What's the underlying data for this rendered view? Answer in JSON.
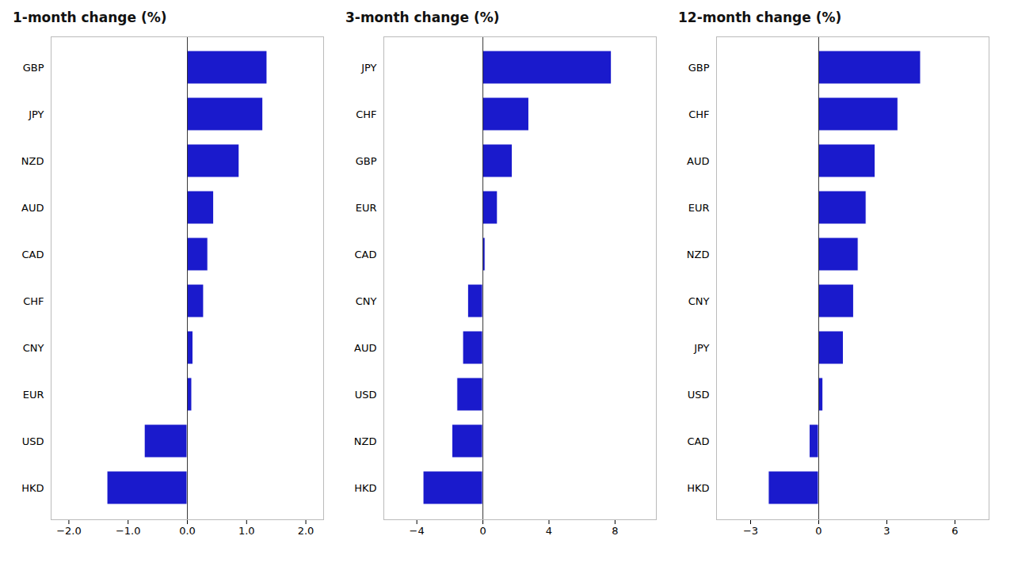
{
  "chart_data": [
    {
      "type": "bar",
      "orientation": "horizontal",
      "title": "1-month change (%)",
      "categories": [
        "GBP",
        "JPY",
        "NZD",
        "AUD",
        "CAD",
        "CHF",
        "CNY",
        "EUR",
        "USD",
        "HKD"
      ],
      "values": [
        1.35,
        1.28,
        0.88,
        0.45,
        0.35,
        0.28,
        0.1,
        0.08,
        -0.72,
        -1.35
      ],
      "color": "#1a1acc",
      "xlim": [
        -2.3,
        2.3
      ],
      "xticks": [
        -2,
        -1,
        0,
        1,
        2
      ],
      "grid": false
    },
    {
      "type": "bar",
      "orientation": "horizontal",
      "title": "3-month change (%)",
      "categories": [
        "JPY",
        "CHF",
        "GBP",
        "EUR",
        "CAD",
        "CNY",
        "AUD",
        "USD",
        "NZD",
        "HKD"
      ],
      "values": [
        7.8,
        2.8,
        1.8,
        0.9,
        0.15,
        -0.9,
        -1.2,
        -1.55,
        -1.85,
        -3.6
      ],
      "color": "#1a1acc",
      "xlim": [
        -6.0,
        10.5
      ],
      "xticks": [
        -4,
        0,
        4,
        8
      ],
      "grid": false
    },
    {
      "type": "bar",
      "orientation": "horizontal",
      "title": "12-month change (%)",
      "categories": [
        "GBP",
        "CHF",
        "AUD",
        "EUR",
        "NZD",
        "CNY",
        "JPY",
        "USD",
        "CAD",
        "HKD"
      ],
      "values": [
        4.5,
        3.5,
        2.5,
        2.1,
        1.75,
        1.55,
        1.1,
        0.2,
        -0.4,
        -2.2
      ],
      "color": "#1a1acc",
      "xlim": [
        -4.5,
        7.5
      ],
      "xticks": [
        -3,
        0,
        3,
        6
      ],
      "grid": false
    }
  ]
}
